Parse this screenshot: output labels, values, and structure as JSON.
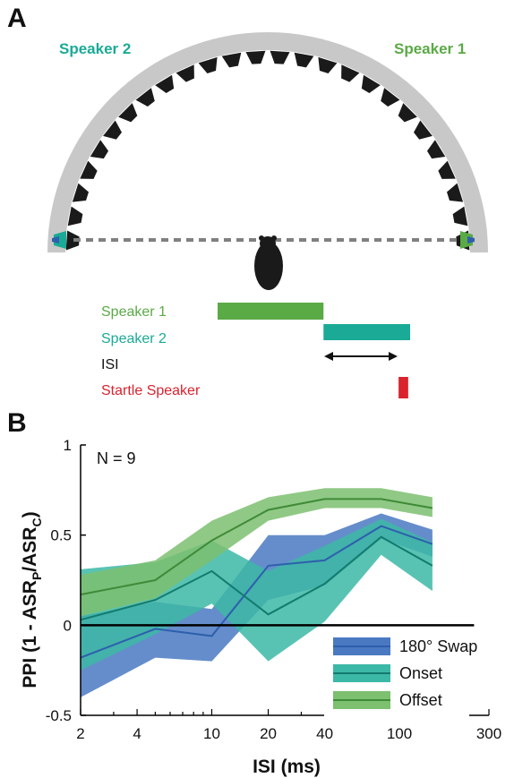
{
  "panel_a": {
    "letter": "A",
    "speaker2_label": "Speaker 2",
    "speaker1_label": "Speaker 1",
    "timing": [
      {
        "label": "Speaker 1",
        "color": "#5aaa46",
        "bar_start": 0.0,
        "bar_end": 0.55
      },
      {
        "label": "Speaker 2",
        "color": "#1aaa96",
        "bar_start": 0.55,
        "bar_end": 1.0
      },
      {
        "label": "ISI",
        "color": "#111111"
      },
      {
        "label": "Startle Speaker",
        "color": "#d9232e",
        "bar_start": 0.94,
        "bar_end": 0.99
      }
    ],
    "colors": {
      "arc": "#c8c8c8",
      "speaker": "#1a1a1a",
      "dash": "#808080"
    }
  },
  "panel_b": {
    "letter": "B"
  },
  "chart_data": {
    "type": "line",
    "title": "",
    "annotation": "N = 9",
    "xlabel": "ISI (ms)",
    "ylabel_parts": {
      "main": "PPI (1 - ASR",
      "sub1": "P",
      "mid": "/ASR",
      "sub2": "C",
      "end": ")"
    },
    "x_scale": "log",
    "xlim": [
      2,
      300
    ],
    "ylim": [
      -0.5,
      1
    ],
    "x_ticks": [
      2,
      4,
      10,
      20,
      40,
      100,
      300
    ],
    "x_tick_labels": [
      "2",
      "4",
      "10",
      "20",
      "40",
      "100",
      "300"
    ],
    "y_ticks": [
      -0.5,
      0,
      0.5,
      1
    ],
    "y_tick_labels": [
      "-0.5",
      "0",
      "0.5",
      "1"
    ],
    "x": [
      2,
      5,
      10,
      20,
      40,
      80,
      150
    ],
    "legend_position": "bottom-right",
    "series": [
      {
        "name": "180° Swap",
        "color": "#2e5fad",
        "fill": "#4a79c2",
        "mean": [
          -0.18,
          -0.02,
          -0.06,
          0.33,
          0.36,
          0.55,
          0.45
        ],
        "lower": [
          -0.4,
          -0.18,
          -0.2,
          0.14,
          0.22,
          0.48,
          0.38
        ],
        "upper": [
          0.05,
          0.13,
          0.09,
          0.5,
          0.5,
          0.62,
          0.53
        ]
      },
      {
        "name": "Onset",
        "color": "#137a6e",
        "fill": "#3cb8a6",
        "mean": [
          0.03,
          0.14,
          0.3,
          0.06,
          0.23,
          0.49,
          0.33
        ],
        "lower": [
          -0.25,
          -0.05,
          0.12,
          -0.2,
          0.02,
          0.39,
          0.19
        ],
        "upper": [
          0.31,
          0.35,
          0.47,
          0.3,
          0.44,
          0.59,
          0.46
        ]
      },
      {
        "name": "Offset",
        "color": "#3f8a38",
        "fill": "#7cc070",
        "mean": [
          0.17,
          0.25,
          0.47,
          0.64,
          0.7,
          0.7,
          0.65
        ],
        "lower": [
          0.05,
          0.15,
          0.36,
          0.58,
          0.65,
          0.65,
          0.6
        ],
        "upper": [
          0.28,
          0.36,
          0.58,
          0.71,
          0.76,
          0.76,
          0.71
        ]
      }
    ]
  }
}
